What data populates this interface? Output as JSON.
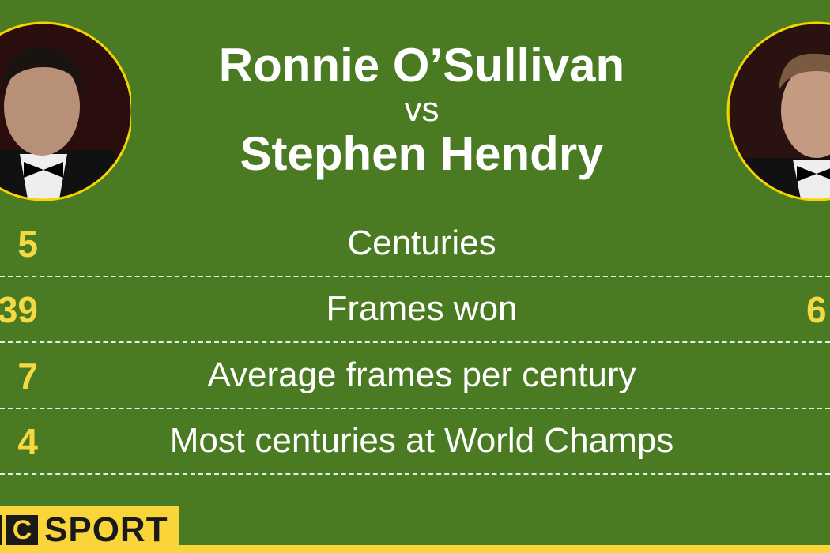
{
  "header": {
    "player1": "Ronnie O’Sullivan",
    "vs": "vs",
    "player2": "Stephen Hendry"
  },
  "stats": [
    {
      "label": "Centuries",
      "left": "5",
      "right": ""
    },
    {
      "label": "Frames won",
      "left": "39",
      "right": "6"
    },
    {
      "label": "Average frames per century",
      "left": "7",
      "right": ""
    },
    {
      "label": "Most centuries at World Champs",
      "left": "4",
      "right": ""
    }
  ],
  "logo": {
    "box_letter": "C",
    "text": "SPORT"
  },
  "colors": {
    "background": "#4a7b22",
    "accent": "#f5d942",
    "text": "#ffffff"
  }
}
